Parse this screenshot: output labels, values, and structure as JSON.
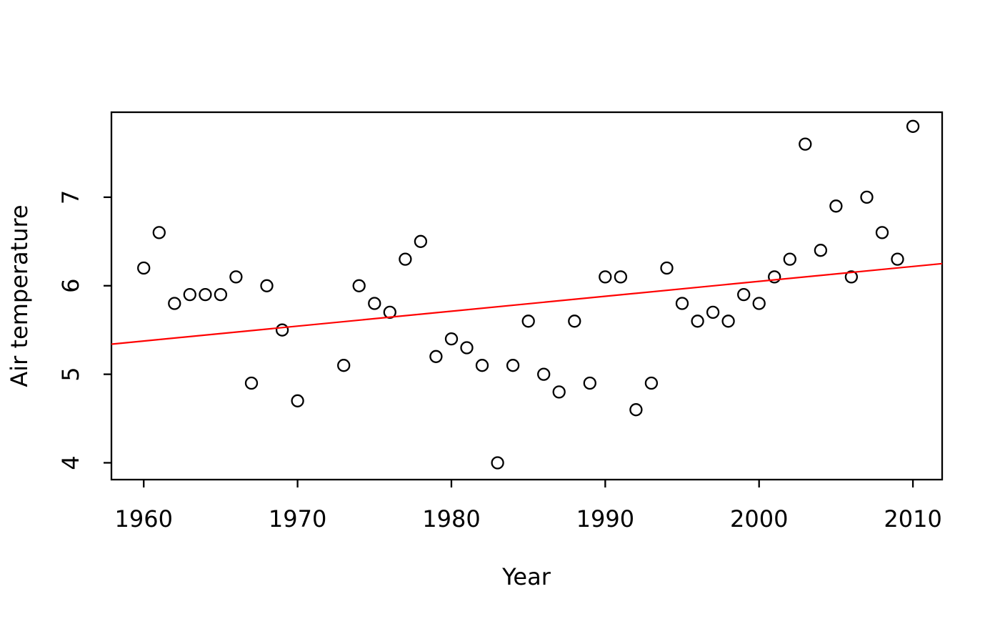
{
  "chart_data": {
    "type": "scatter",
    "title": "",
    "xlabel": "Year",
    "ylabel": "Air temperature",
    "xlim": [
      1957.9,
      2011.9
    ],
    "ylim": [
      3.81,
      7.96
    ],
    "x_ticks": [
      1960,
      1970,
      1980,
      1990,
      2000,
      2010
    ],
    "y_ticks": [
      4,
      5,
      6,
      7
    ],
    "grid": false,
    "legend": "none",
    "point_style": {
      "shape": "open-circle",
      "stroke_color": "#000000",
      "fill": "none"
    },
    "points": [
      {
        "x": 1960,
        "y": 6.2
      },
      {
        "x": 1961,
        "y": 6.6
      },
      {
        "x": 1962,
        "y": 5.8
      },
      {
        "x": 1963,
        "y": 5.9
      },
      {
        "x": 1964,
        "y": 5.9
      },
      {
        "x": 1965,
        "y": 5.9
      },
      {
        "x": 1966,
        "y": 6.1
      },
      {
        "x": 1967,
        "y": 4.9
      },
      {
        "x": 1968,
        "y": 6.0
      },
      {
        "x": 1969,
        "y": 5.5
      },
      {
        "x": 1970,
        "y": 4.7
      },
      {
        "x": 1973,
        "y": 5.1
      },
      {
        "x": 1974,
        "y": 6.0
      },
      {
        "x": 1975,
        "y": 5.8
      },
      {
        "x": 1976,
        "y": 5.7
      },
      {
        "x": 1977,
        "y": 6.3
      },
      {
        "x": 1978,
        "y": 6.5
      },
      {
        "x": 1979,
        "y": 5.2
      },
      {
        "x": 1980,
        "y": 5.4
      },
      {
        "x": 1981,
        "y": 5.3
      },
      {
        "x": 1982,
        "y": 5.1
      },
      {
        "x": 1983,
        "y": 4.0
      },
      {
        "x": 1984,
        "y": 5.1
      },
      {
        "x": 1985,
        "y": 5.6
      },
      {
        "x": 1986,
        "y": 5.0
      },
      {
        "x": 1987,
        "y": 4.8
      },
      {
        "x": 1988,
        "y": 5.6
      },
      {
        "x": 1989,
        "y": 4.9
      },
      {
        "x": 1990,
        "y": 6.1
      },
      {
        "x": 1991,
        "y": 6.1
      },
      {
        "x": 1992,
        "y": 4.6
      },
      {
        "x": 1993,
        "y": 4.9
      },
      {
        "x": 1994,
        "y": 6.2
      },
      {
        "x": 1995,
        "y": 5.8
      },
      {
        "x": 1996,
        "y": 5.6
      },
      {
        "x": 1997,
        "y": 5.7
      },
      {
        "x": 1998,
        "y": 5.6
      },
      {
        "x": 1999,
        "y": 5.9
      },
      {
        "x": 2000,
        "y": 5.8
      },
      {
        "x": 2001,
        "y": 6.1
      },
      {
        "x": 2002,
        "y": 6.3
      },
      {
        "x": 2003,
        "y": 7.6
      },
      {
        "x": 2004,
        "y": 6.4
      },
      {
        "x": 2005,
        "y": 6.9
      },
      {
        "x": 2006,
        "y": 6.1
      },
      {
        "x": 2007,
        "y": 7.0
      },
      {
        "x": 2008,
        "y": 6.6
      },
      {
        "x": 2009,
        "y": 6.3
      },
      {
        "x": 2010,
        "y": 7.8
      }
    ],
    "trend_line": {
      "kind": "linear-fit",
      "color": "#ff0000",
      "x1": 1957.9,
      "y1": 5.34,
      "x2": 2011.9,
      "y2": 6.25
    }
  }
}
